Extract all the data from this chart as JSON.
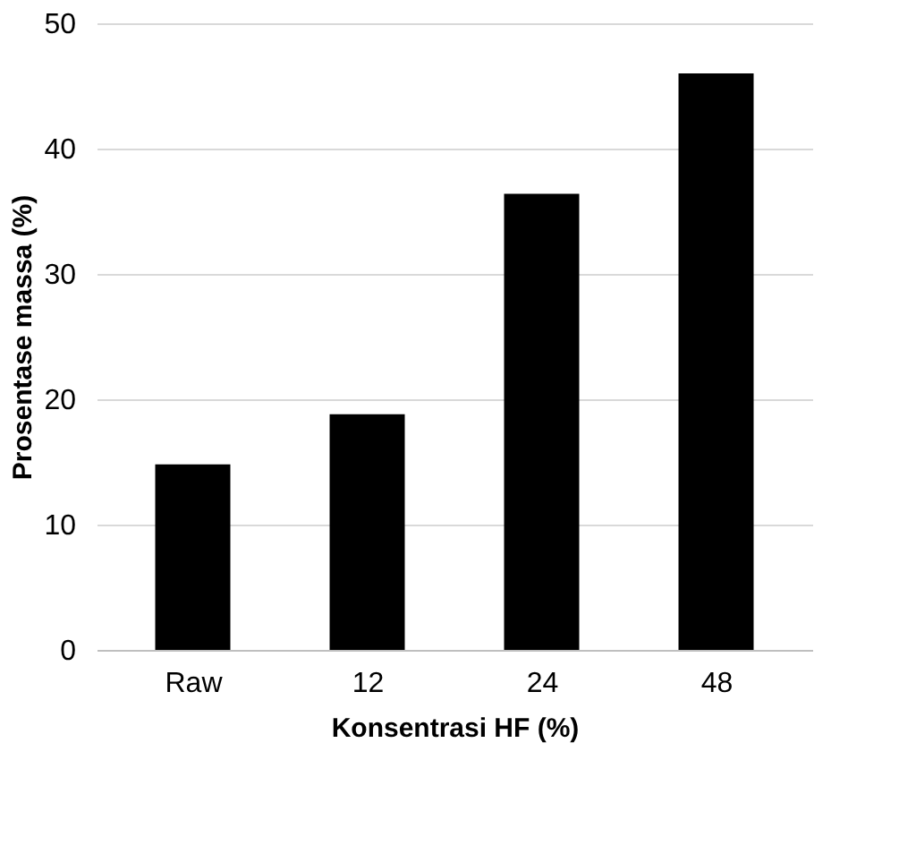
{
  "chart_data": {
    "type": "bar",
    "xlabel": "Konsentrasi HF (%)",
    "ylabel": "Prosentase massa (%)",
    "categories": [
      "Raw",
      "12",
      "24",
      "48"
    ],
    "values": [
      14.8,
      18.8,
      36.4,
      46.0
    ],
    "color": "#000000",
    "ylim": [
      0,
      50
    ],
    "yticks": [
      0,
      10,
      20,
      30,
      40,
      50
    ],
    "grid": "y"
  }
}
